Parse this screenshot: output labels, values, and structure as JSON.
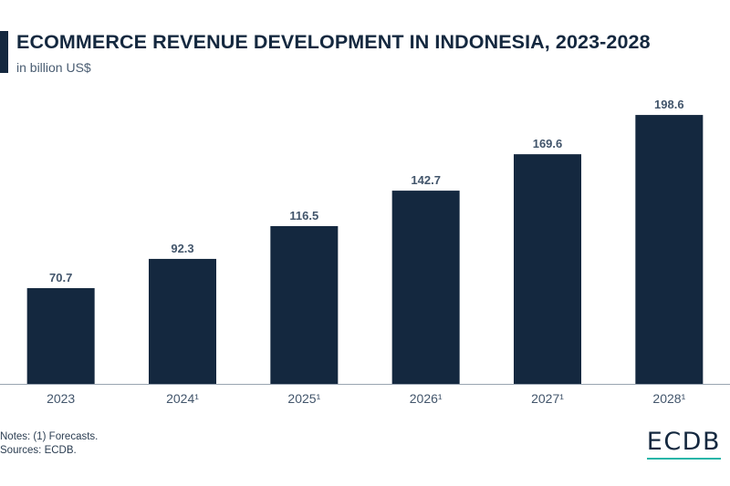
{
  "header": {
    "title": "ECOMMERCE REVENUE DEVELOPMENT IN INDONESIA, 2023-2028",
    "subtitle": "in billion US$"
  },
  "chart_data": {
    "type": "bar",
    "title": "ECOMMERCE REVENUE DEVELOPMENT IN INDONESIA, 2023-2028",
    "subtitle": "in billion US$",
    "categories": [
      "2023",
      "2024¹",
      "2025¹",
      "2026¹",
      "2027¹",
      "2028¹"
    ],
    "values": [
      70.7,
      92.3,
      116.5,
      142.7,
      169.6,
      198.6
    ],
    "value_labels": [
      "70.7",
      "92.3",
      "116.5",
      "142.7",
      "169.6",
      "198.6"
    ],
    "xlabel": "",
    "ylabel": "",
    "ylim": [
      0,
      200
    ],
    "grid": false,
    "bar_color": "#14283f"
  },
  "footer": {
    "notes": "Notes: (1) Forecasts.",
    "sources": "Sources: ECDB.",
    "logo": "ECDB",
    "logo_accent": "#27b5a8"
  }
}
